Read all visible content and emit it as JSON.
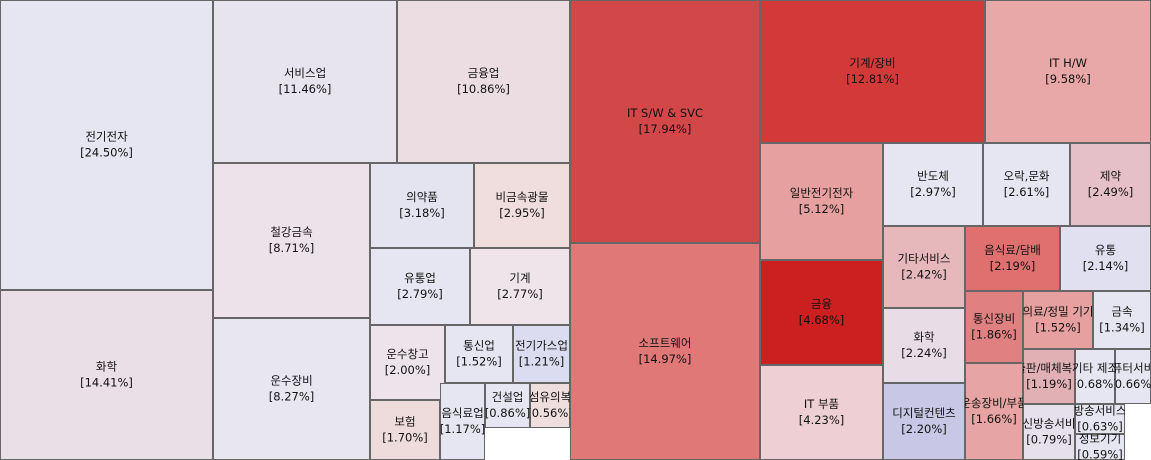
{
  "chart_data": {
    "type": "treemap",
    "categories": [
      "전기전자",
      "화학",
      "서비스업",
      "금융업",
      "철강금속",
      "운수장비",
      "의약품",
      "비금속광물",
      "유통업",
      "기계",
      "운수창고",
      "통신업",
      "전기가스업",
      "보험",
      "음식료업",
      "건설업",
      "섬유의복",
      "IT S/W & SVC",
      "소프트웨어",
      "기계/장비",
      "IT H/W",
      "일반전기전자",
      "반도체",
      "오락,문화",
      "제약",
      "금융",
      "IT 부품",
      "기타서비스",
      "음식료/담배",
      "유통",
      "화학",
      "디지털컨텐츠",
      "통신장비",
      "의료/정밀 기기",
      "금속",
      "운송장비/부품",
      "출판/매체복제",
      "기타 제조",
      "컴퓨터서비스",
      "통신방송서비스",
      "방송서비스",
      "정보기기"
    ],
    "values": [
      24.5,
      14.41,
      11.46,
      10.86,
      8.71,
      8.27,
      3.18,
      2.95,
      2.79,
      2.77,
      2.0,
      1.52,
      1.21,
      1.7,
      1.17,
      0.86,
      0.56,
      17.94,
      14.97,
      12.81,
      9.58,
      5.12,
      2.97,
      2.61,
      2.49,
      4.68,
      4.23,
      2.42,
      2.19,
      2.14,
      2.24,
      2.2,
      1.86,
      1.52,
      1.34,
      1.66,
      1.19,
      0.68,
      0.66,
      0.79,
      0.63,
      0.59
    ],
    "value_labels": [
      "[24.50%]",
      "[14.41%]",
      "[11.46%]",
      "[10.86%]",
      "[8.71%]",
      "[8.27%]",
      "[3.18%]",
      "[2.95%]",
      "[2.79%]",
      "[2.77%]",
      "[2.00%]",
      "[1.52%]",
      "[1.21%]",
      "[1.70%]",
      "[1.17%]",
      "[0.86%]",
      "[0.56%]",
      "[17.94%]",
      "[14.97%]",
      "[12.81%]",
      "[9.58%]",
      "[5.12%]",
      "[2.97%]",
      "[2.61%]",
      "[2.49%]",
      "[4.68%]",
      "[4.23%]",
      "[2.42%]",
      "[2.19%]",
      "[2.14%]",
      "[2.24%]",
      "[2.20%]",
      "[1.86%]",
      "[1.52%]",
      "[1.34%]",
      "[1.66%]",
      "[1.19%]",
      "[0.68%]",
      "[0.66%]",
      "[0.79%]",
      "[0.63%]",
      "[0.59%]"
    ],
    "colors": [
      "#e6e6f2",
      "#eadfe6",
      "#e8e4ee",
      "#ecdde2",
      "#eee2ea",
      "#e8e6f0",
      "#e4e4f0",
      "#f0dede",
      "#e6e6f2",
      "#eee4ea",
      "#ece4ea",
      "#e6e6f2",
      "#dcdcf0",
      "#eedcdc",
      "#e6e6f2",
      "#e6e6f2",
      "#eedede",
      "#d24848",
      "#e07878",
      "#d23a3a",
      "#e8a8a8",
      "#e6a0a0",
      "#e6e6f2",
      "#e6e6f2",
      "#e6c0c8",
      "#cc2020",
      "#eed0d4",
      "#e6b8bc",
      "#e07070",
      "#e0e0f0",
      "#e8dce6",
      "#c8c8e6",
      "#e08080",
      "#e6a0a0",
      "#e6e6f2",
      "#e6a4a4",
      "#e0b0b4",
      "#e6e6f2",
      "#e6e6f2",
      "#e6e0ea",
      "#e6e6f2",
      "#e6e6f2"
    ]
  }
}
